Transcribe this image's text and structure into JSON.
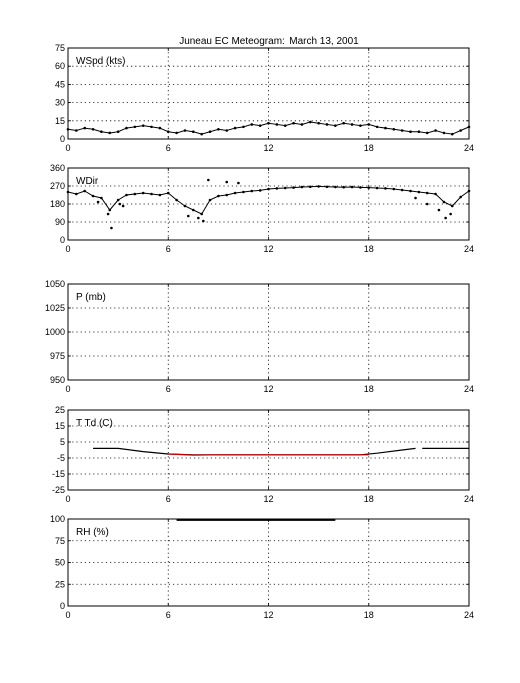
{
  "title": "Juneau EC Meteogram:",
  "date": "March 13, 2001",
  "chart_data": [
    {
      "type": "scatter",
      "label": "WSpd (kts)",
      "xlim": [
        0,
        24
      ],
      "ylim": [
        0,
        75
      ],
      "xticks": [
        "0",
        "6",
        "12",
        "18",
        "24"
      ],
      "yticks": [
        "0",
        "15",
        "30",
        "45",
        "60",
        "75"
      ],
      "grid": true,
      "series": [
        {
          "color": "#000000",
          "x": [
            0,
            0.5,
            1,
            1.5,
            2,
            2.5,
            3,
            3.5,
            4,
            4.5,
            5,
            5.5,
            6,
            6.5,
            7,
            7.5,
            8,
            8.5,
            9,
            9.5,
            10,
            10.5,
            11,
            11.5,
            12,
            12.5,
            13,
            13.5,
            14,
            14.5,
            15,
            15.5,
            16,
            16.5,
            17,
            17.5,
            18,
            18.5,
            19,
            19.5,
            20,
            20.5,
            21,
            21.5,
            22,
            22.5,
            23,
            23.5,
            24
          ],
          "y": [
            8,
            7,
            9,
            8,
            6,
            5,
            6,
            9,
            10,
            11,
            10,
            9,
            6,
            5,
            7,
            6,
            4,
            6,
            8,
            7,
            9,
            10,
            12,
            11,
            13,
            12,
            11,
            13,
            12,
            14,
            13,
            12,
            11,
            13,
            12,
            11,
            12,
            10,
            9,
            8,
            7,
            6,
            6,
            5,
            7,
            5,
            4,
            7,
            10
          ]
        }
      ]
    },
    {
      "type": "scatter",
      "label": "WDir",
      "xlim": [
        0,
        24
      ],
      "ylim": [
        0,
        360
      ],
      "xticks": [
        "0",
        "6",
        "12",
        "18",
        "24"
      ],
      "yticks": [
        "0",
        "90",
        "180",
        "270",
        "360"
      ],
      "grid": true,
      "series": [
        {
          "color": "#000000",
          "x": [
            0,
            0.5,
            1,
            1.5,
            2,
            2.5,
            3,
            3.5,
            4,
            4.5,
            5,
            5.5,
            6,
            6.5,
            7,
            7.5,
            8,
            8.5,
            9,
            9.5,
            10,
            10.5,
            11,
            11.5,
            12,
            12.5,
            13,
            13.5,
            14,
            14.5,
            15,
            15.5,
            16,
            16.5,
            17,
            17.5,
            18,
            18.5,
            19,
            19.5,
            20,
            20.5,
            21,
            21.5,
            22,
            22.5,
            23,
            23.5,
            24
          ],
          "y": [
            240,
            230,
            245,
            220,
            210,
            150,
            200,
            225,
            230,
            235,
            230,
            225,
            235,
            200,
            170,
            150,
            130,
            200,
            220,
            225,
            235,
            240,
            245,
            248,
            255,
            258,
            260,
            262,
            265,
            266,
            268,
            266,
            265,
            264,
            265,
            263,
            262,
            260,
            258,
            255,
            250,
            245,
            240,
            235,
            230,
            190,
            170,
            215,
            245
          ]
        },
        {
          "color": "#000000",
          "x": [
            1.8,
            2.4,
            2.6,
            3.1,
            3.3,
            7.2,
            7.8,
            8.1,
            8.4,
            9.5,
            10.2,
            20.8,
            21.5,
            22.2,
            22.6,
            22.9
          ],
          "y": [
            190,
            130,
            60,
            180,
            170,
            120,
            110,
            95,
            300,
            290,
            285,
            210,
            180,
            150,
            110,
            130
          ]
        }
      ]
    },
    {
      "type": "line",
      "label": "P (mb)",
      "xlim": [
        0,
        24
      ],
      "ylim": [
        950,
        1050
      ],
      "xticks": [
        "0",
        "6",
        "12",
        "18",
        "24"
      ],
      "yticks": [
        "950",
        "975",
        "1000",
        "1025",
        "1050"
      ],
      "grid": true,
      "series": []
    },
    {
      "type": "line",
      "label": "T Td (C)",
      "xlim": [
        0,
        24
      ],
      "ylim": [
        -25,
        25
      ],
      "xticks": [
        "0",
        "6",
        "12",
        "18",
        "24"
      ],
      "yticks": [
        "-25",
        "-15",
        "-5",
        "5",
        "15",
        "25"
      ],
      "grid": true,
      "series": [
        {
          "color": "#000000",
          "x": [
            1.5,
            3,
            4.5,
            6,
            7.5,
            9,
            12,
            15,
            17.5,
            18.5,
            20,
            20.8
          ],
          "y": [
            1,
            1,
            -1,
            -2.5,
            -3,
            -3,
            -3,
            -3,
            -3,
            -2,
            0,
            1
          ],
          "gap_after_index": 11
        },
        {
          "color": "#000000",
          "x": [
            21.2,
            24
          ],
          "y": [
            1,
            1
          ]
        },
        {
          "color": "#cc0000",
          "x": [
            6,
            7.5,
            9,
            12,
            15,
            17.5,
            18
          ],
          "y": [
            -2.5,
            -3.2,
            -3,
            -3,
            -3,
            -3,
            -3
          ]
        }
      ]
    },
    {
      "type": "line",
      "label": "RH (%)",
      "xlim": [
        0,
        24
      ],
      "ylim": [
        0,
        100
      ],
      "xticks": [
        "0",
        "6",
        "12",
        "18",
        "24"
      ],
      "yticks": [
        "0",
        "25",
        "50",
        "75",
        "100"
      ],
      "grid": true,
      "series": [
        {
          "color": "#000000",
          "x": [
            6.5,
            16
          ],
          "y": [
            99,
            99
          ]
        }
      ]
    }
  ]
}
